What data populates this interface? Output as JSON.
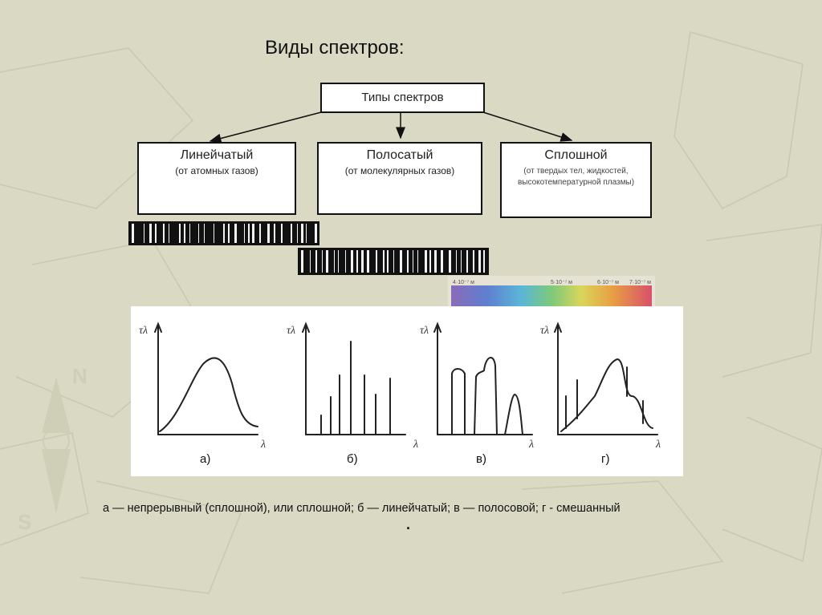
{
  "slide": {
    "title": "Виды спектров:"
  },
  "diagram": {
    "root": {
      "label": "Типы спектров"
    },
    "children": [
      {
        "id": "line",
        "label": "Линейчатый",
        "sub": "(от атомных газов)"
      },
      {
        "id": "band",
        "label": "Полосатый",
        "sub": "(от молекулярных газов)"
      },
      {
        "id": "continuous",
        "label": "Сплошной",
        "sub": "(от твердых тел, жидкостей, высокотемпературной плазмы)"
      }
    ]
  },
  "spectrum_scale": {
    "labels": [
      "4·10⁻⁷ м",
      "5·10⁻⁷ м",
      "6·10⁻⁷ м",
      "7·10⁻⁷ м"
    ]
  },
  "graphs": {
    "y_label": "τλ",
    "x_label": "λ",
    "panels": [
      {
        "id": "a",
        "caption": "а)"
      },
      {
        "id": "b",
        "caption": "б)"
      },
      {
        "id": "v",
        "caption": "в)"
      },
      {
        "id": "g",
        "caption": "г)"
      }
    ]
  },
  "caption": {
    "text": "а — непрерывный (сплошной), или сплошной; б — линейчатый; в — полосовой; г - смешанный",
    "dot": "."
  },
  "colors": {
    "background": "#d9d9c4",
    "box_border": "#111111"
  }
}
